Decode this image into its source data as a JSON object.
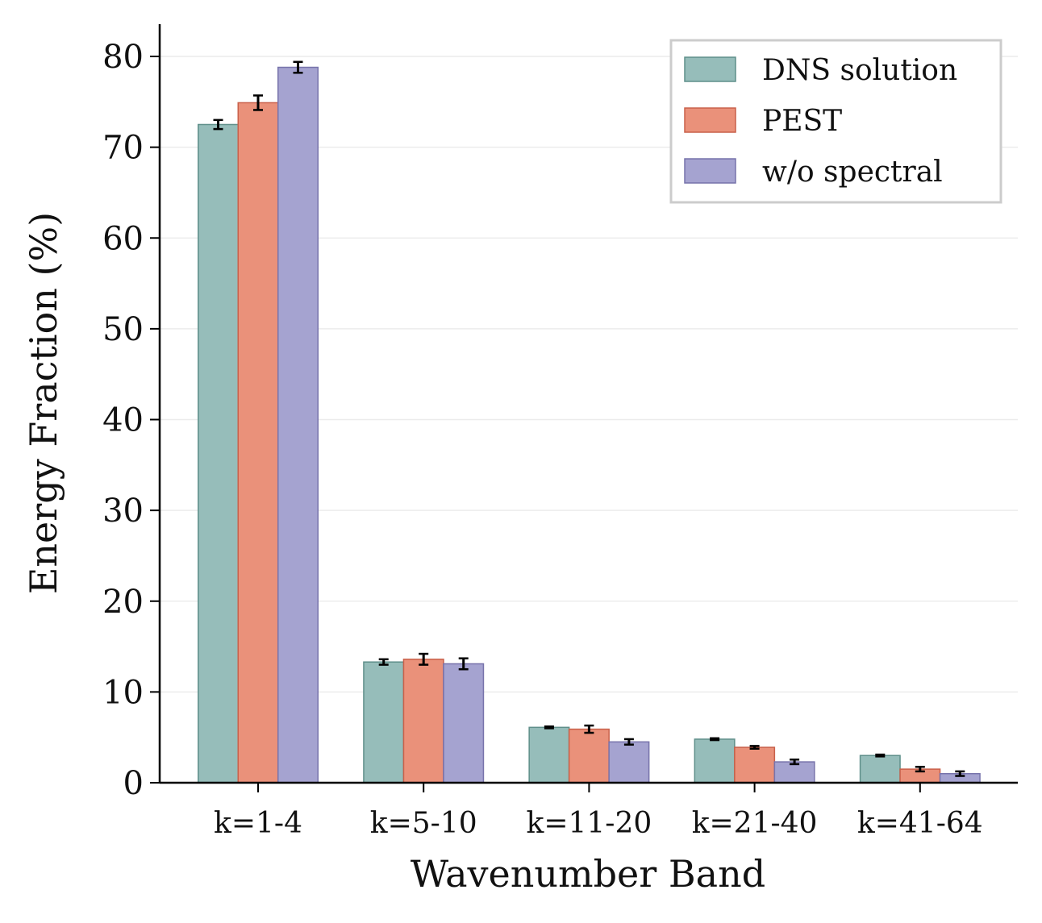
{
  "chart_data": {
    "type": "bar",
    "title": "",
    "xlabel": "Wavenumber Band",
    "ylabel": "Energy Fraction (%)",
    "ylim": [
      0,
      83.5
    ],
    "yticks": [
      0,
      10,
      20,
      30,
      40,
      50,
      60,
      70,
      80
    ],
    "grid": "horizontal",
    "legend_position": "top-right",
    "categories": [
      "k=1-4",
      "k=5-10",
      "k=11-20",
      "k=21-40",
      "k=41-64"
    ],
    "series": [
      {
        "name": "DNS solution",
        "color": "#96bdba",
        "edge": "#5f8f8a",
        "values": [
          72.5,
          13.3,
          6.1,
          4.8,
          3.0
        ],
        "errors": [
          0.5,
          0.3,
          0.1,
          0.1,
          0.1
        ]
      },
      {
        "name": "PEST",
        "color": "#ea917a",
        "edge": "#c9604a",
        "values": [
          74.9,
          13.6,
          5.9,
          3.9,
          1.5
        ],
        "errors": [
          0.8,
          0.6,
          0.4,
          0.15,
          0.25
        ]
      },
      {
        "name": "w/o spectral",
        "color": "#a5a3d0",
        "edge": "#7773ab",
        "values": [
          78.8,
          13.1,
          4.5,
          2.3,
          1.0
        ],
        "errors": [
          0.6,
          0.6,
          0.3,
          0.25,
          0.25
        ]
      }
    ]
  }
}
